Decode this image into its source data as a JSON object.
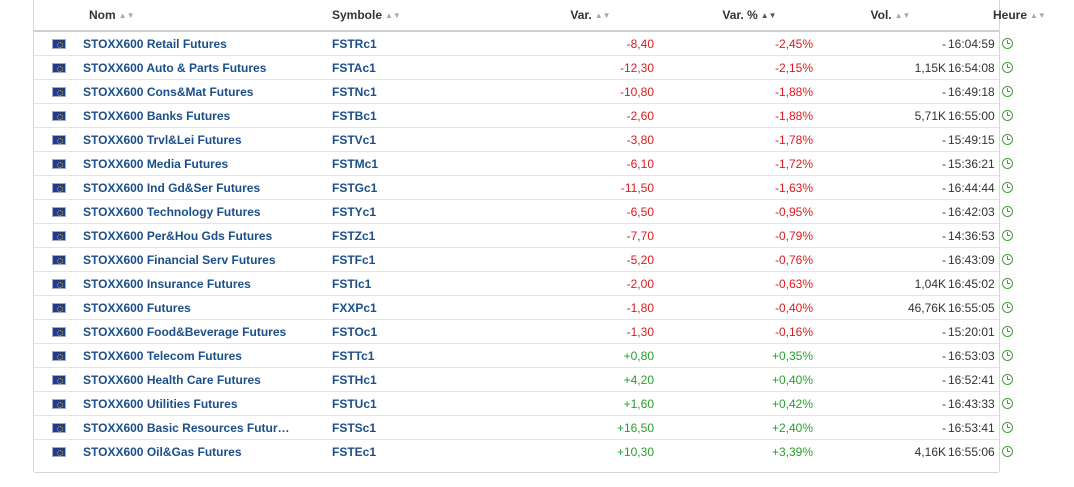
{
  "header": {
    "name": "Nom",
    "symbol": "Symbole",
    "var": "Var.",
    "var_pct": "Var. %",
    "vol": "Vol.",
    "time": "Heure"
  },
  "rows": [
    {
      "name": "STOXX600 Retail Futures",
      "symbol": "FSTRc1",
      "var": "-8,40",
      "pct": "-2,45%",
      "vol": "-",
      "time": "16:04:59",
      "trend": "neg"
    },
    {
      "name": "STOXX600 Auto & Parts Futures",
      "symbol": "FSTAc1",
      "var": "-12,30",
      "pct": "-2,15%",
      "vol": "1,15K",
      "time": "16:54:08",
      "trend": "neg"
    },
    {
      "name": "STOXX600 Cons&Mat Futures",
      "symbol": "FSTNc1",
      "var": "-10,80",
      "pct": "-1,88%",
      "vol": "-",
      "time": "16:49:18",
      "trend": "neg"
    },
    {
      "name": "STOXX600 Banks Futures",
      "symbol": "FSTBc1",
      "var": "-2,60",
      "pct": "-1,88%",
      "vol": "5,71K",
      "time": "16:55:00",
      "trend": "neg"
    },
    {
      "name": "STOXX600 Trvl&Lei Futures",
      "symbol": "FSTVc1",
      "var": "-3,80",
      "pct": "-1,78%",
      "vol": "-",
      "time": "15:49:15",
      "trend": "neg"
    },
    {
      "name": "STOXX600 Media Futures",
      "symbol": "FSTMc1",
      "var": "-6,10",
      "pct": "-1,72%",
      "vol": "-",
      "time": "15:36:21",
      "trend": "neg"
    },
    {
      "name": "STOXX600 Ind Gd&Ser Futures",
      "symbol": "FSTGc1",
      "var": "-11,50",
      "pct": "-1,63%",
      "vol": "-",
      "time": "16:44:44",
      "trend": "neg"
    },
    {
      "name": "STOXX600 Technology Futures",
      "symbol": "FSTYc1",
      "var": "-6,50",
      "pct": "-0,95%",
      "vol": "-",
      "time": "16:42:03",
      "trend": "neg"
    },
    {
      "name": "STOXX600 Per&Hou Gds Futures",
      "symbol": "FSTZc1",
      "var": "-7,70",
      "pct": "-0,79%",
      "vol": "-",
      "time": "14:36:53",
      "trend": "neg"
    },
    {
      "name": "STOXX600 Financial Serv Futures",
      "symbol": "FSTFc1",
      "var": "-5,20",
      "pct": "-0,76%",
      "vol": "-",
      "time": "16:43:09",
      "trend": "neg"
    },
    {
      "name": "STOXX600 Insurance Futures",
      "symbol": "FSTIc1",
      "var": "-2,00",
      "pct": "-0,63%",
      "vol": "1,04K",
      "time": "16:45:02",
      "trend": "neg"
    },
    {
      "name": "STOXX600 Futures",
      "symbol": "FXXPc1",
      "var": "-1,80",
      "pct": "-0,40%",
      "vol": "46,76K",
      "time": "16:55:05",
      "trend": "neg"
    },
    {
      "name": "STOXX600 Food&Beverage Futures",
      "symbol": "FSTOc1",
      "var": "-1,30",
      "pct": "-0,16%",
      "vol": "-",
      "time": "15:20:01",
      "trend": "neg"
    },
    {
      "name": "STOXX600 Telecom Futures",
      "symbol": "FSTTc1",
      "var": "+0,80",
      "pct": "+0,35%",
      "vol": "-",
      "time": "16:53:03",
      "trend": "pos"
    },
    {
      "name": "STOXX600 Health Care Futures",
      "symbol": "FSTHc1",
      "var": "+4,20",
      "pct": "+0,40%",
      "vol": "-",
      "time": "16:52:41",
      "trend": "pos"
    },
    {
      "name": "STOXX600 Utilities Futures",
      "symbol": "FSTUc1",
      "var": "+1,60",
      "pct": "+0,42%",
      "vol": "-",
      "time": "16:43:33",
      "trend": "pos"
    },
    {
      "name": "STOXX600 Basic Resources Futur…",
      "symbol": "FSTSc1",
      "var": "+16,50",
      "pct": "+2,40%",
      "vol": "-",
      "time": "16:53:41",
      "trend": "pos"
    },
    {
      "name": "STOXX600 Oil&Gas Futures",
      "symbol": "FSTEc1",
      "var": "+10,30",
      "pct": "+3,39%",
      "vol": "4,16K",
      "time": "16:55:06",
      "trend": "pos"
    }
  ],
  "colors": {
    "negative": "#e0191e",
    "positive": "#27a02a",
    "link": "#1a4f8b"
  },
  "icons": {
    "flag": "eu-flag-icon",
    "time": "clock-icon",
    "sort": "sort-arrows-icon"
  }
}
